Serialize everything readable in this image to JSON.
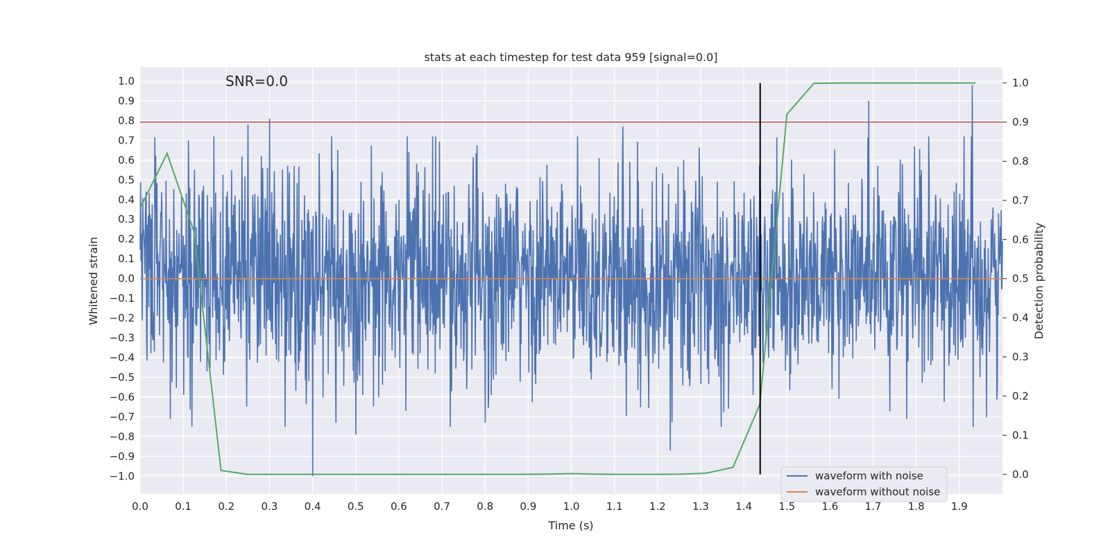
{
  "chart_data": {
    "type": "line",
    "title": "stats at each timestep for test data 959 [signal=0.0]",
    "annotation": "SNR=0.0",
    "xlabel": "Time (s)",
    "ylabel_left": "Whitened strain",
    "ylabel_right": "Detection probability",
    "xlim": [
      0.0,
      2.0
    ],
    "ylim_left": [
      -1.09,
      1.07
    ],
    "ylim_right": [
      -0.05,
      1.04
    ],
    "x_ticks": [
      "0.0",
      "0.1",
      "0.2",
      "0.3",
      "0.4",
      "0.5",
      "0.6",
      "0.7",
      "0.8",
      "0.9",
      "1.0",
      "1.1",
      "1.2",
      "1.3",
      "1.4",
      "1.5",
      "1.6",
      "1.7",
      "1.8",
      "1.9"
    ],
    "y_ticks_left": [
      "−1.0",
      "−0.9",
      "−0.8",
      "−0.7",
      "−0.6",
      "−0.5",
      "−0.4",
      "−0.3",
      "−0.2",
      "−0.1",
      "0.0",
      "0.1",
      "0.2",
      "0.3",
      "0.4",
      "0.5",
      "0.6",
      "0.7",
      "0.8",
      "0.9",
      "1.0"
    ],
    "y_ticks_right": [
      "0.0",
      "0.1",
      "0.2",
      "0.3",
      "0.4",
      "0.5",
      "0.6",
      "0.7",
      "0.8",
      "0.9",
      "1.0"
    ],
    "series": [
      {
        "name": "waveform with noise",
        "axis": "left",
        "color": "#4c72b0",
        "description": "noisy whitened strain, approx. gaussian with std ~0.27, sampled at ~2048 Hz",
        "notable_peaks": [
          {
            "x": 0.25,
            "y": 0.78
          },
          {
            "x": 0.3,
            "y": 0.81
          },
          {
            "x": 0.4,
            "y": -1.0
          },
          {
            "x": 1.12,
            "y": 0.77
          },
          {
            "x": 1.23,
            "y": -0.87
          },
          {
            "x": 1.69,
            "y": 0.9
          },
          {
            "x": 1.93,
            "y": 0.98
          },
          {
            "x": 0.07,
            "y": -0.71
          },
          {
            "x": 0.5,
            "y": -0.79
          }
        ]
      },
      {
        "name": "waveform without noise",
        "axis": "left",
        "color": "#dd8452",
        "x": [
          0.0,
          2.0
        ],
        "y": [
          0.0,
          0.0
        ]
      },
      {
        "name": "detection probability",
        "axis": "right",
        "color": "#55a868",
        "x": [
          0.0,
          0.0625,
          0.125,
          0.1875,
          0.25,
          0.3125,
          0.375,
          0.4375,
          0.5,
          0.5625,
          0.625,
          0.6875,
          0.75,
          0.8125,
          0.875,
          0.9375,
          1.0,
          1.0625,
          1.125,
          1.1875,
          1.25,
          1.3125,
          1.375,
          1.4375,
          1.5,
          1.5625,
          1.625,
          1.6875,
          1.75,
          1.8125,
          1.875,
          1.9375
        ],
        "y": [
          0.68,
          0.82,
          0.62,
          0.01,
          0.0,
          0.0,
          0.0,
          0.0,
          0.0,
          0.0,
          0.0,
          0.0,
          0.0,
          0.0,
          0.0,
          0.0005,
          0.002,
          0.0005,
          0.0,
          0.0,
          0.0005,
          0.003,
          0.018,
          0.18,
          0.92,
          0.999,
          1.0,
          1.0,
          1.0,
          1.0,
          1.0,
          1.0
        ]
      }
    ],
    "threshold_line": {
      "axis": "right",
      "value": 0.9,
      "color": "#c44e52"
    },
    "vertical_marker": {
      "x": 1.438,
      "y_from": 0.0,
      "y_to": 1.0,
      "color": "#000000"
    },
    "legend": {
      "placement": "lower-right",
      "entries": [
        {
          "label": "waveform with noise",
          "color": "#4c72b0"
        },
        {
          "label": "waveform without noise",
          "color": "#dd8452"
        }
      ]
    }
  }
}
